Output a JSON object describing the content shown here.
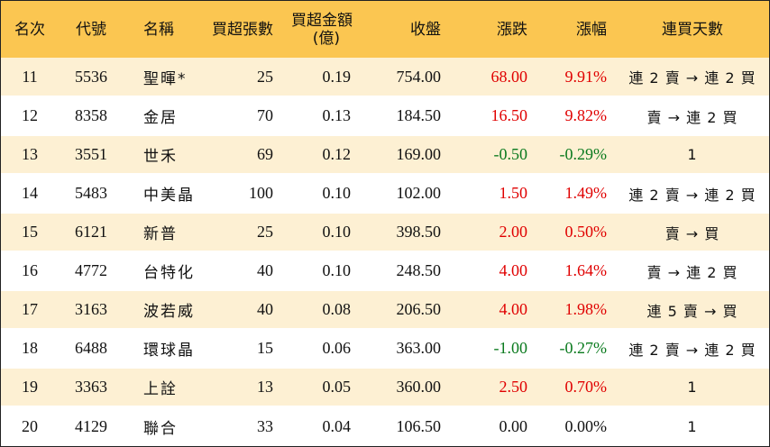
{
  "headers": {
    "rank": "名次",
    "code": "代號",
    "name": "名稱",
    "net_lots": "買超張數",
    "net_amount_line1": "買超金額",
    "net_amount_line2": "(億)",
    "close": "收盤",
    "change": "漲跌",
    "pct": "漲幅",
    "streak": "連買天數"
  },
  "colors": {
    "header_bg": "#fbc651",
    "odd_row_bg": "#fdf0d3",
    "up": "#e00000",
    "down": "#0a7a1e"
  },
  "rows": [
    {
      "rank": "11",
      "code": "5536",
      "name": "聖暉*",
      "lots": "25",
      "amount": "0.19",
      "close": "754.00",
      "change": "68.00",
      "pct": "9.91%",
      "dir": "up",
      "streak": "連 2 賣 → 連 2 買"
    },
    {
      "rank": "12",
      "code": "8358",
      "name": "金居",
      "lots": "70",
      "amount": "0.13",
      "close": "184.50",
      "change": "16.50",
      "pct": "9.82%",
      "dir": "up",
      "streak": "賣 → 連 2 買"
    },
    {
      "rank": "13",
      "code": "3551",
      "name": "世禾",
      "lots": "69",
      "amount": "0.12",
      "close": "169.00",
      "change": "-0.50",
      "pct": "-0.29%",
      "dir": "down",
      "streak": "1"
    },
    {
      "rank": "14",
      "code": "5483",
      "name": "中美晶",
      "lots": "100",
      "amount": "0.10",
      "close": "102.00",
      "change": "1.50",
      "pct": "1.49%",
      "dir": "up",
      "streak": "連 2 賣 → 連 2 買"
    },
    {
      "rank": "15",
      "code": "6121",
      "name": "新普",
      "lots": "25",
      "amount": "0.10",
      "close": "398.50",
      "change": "2.00",
      "pct": "0.50%",
      "dir": "up",
      "streak": "賣 → 買"
    },
    {
      "rank": "16",
      "code": "4772",
      "name": "台特化",
      "lots": "40",
      "amount": "0.10",
      "close": "248.50",
      "change": "4.00",
      "pct": "1.64%",
      "dir": "up",
      "streak": "賣 → 連 2 買"
    },
    {
      "rank": "17",
      "code": "3163",
      "name": "波若威",
      "lots": "40",
      "amount": "0.08",
      "close": "206.50",
      "change": "4.00",
      "pct": "1.98%",
      "dir": "up",
      "streak": "連 5 賣 → 買"
    },
    {
      "rank": "18",
      "code": "6488",
      "name": "環球晶",
      "lots": "15",
      "amount": "0.06",
      "close": "363.00",
      "change": "-1.00",
      "pct": "-0.27%",
      "dir": "down",
      "streak": "連 2 賣 → 連 2 買"
    },
    {
      "rank": "19",
      "code": "3363",
      "name": "上詮",
      "lots": "13",
      "amount": "0.05",
      "close": "360.00",
      "change": "2.50",
      "pct": "0.70%",
      "dir": "up",
      "streak": "1"
    },
    {
      "rank": "20",
      "code": "4129",
      "name": "聯合",
      "lots": "33",
      "amount": "0.04",
      "close": "106.50",
      "change": "0.00",
      "pct": "0.00%",
      "dir": "flat",
      "streak": "1"
    }
  ]
}
